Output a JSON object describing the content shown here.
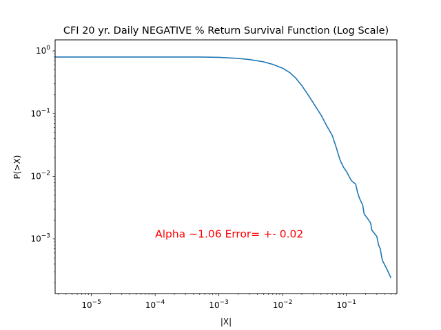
{
  "chart_data": {
    "type": "line",
    "title": "CFI 20 yr. Daily NEGATIVE % Return Survival Function (Log Scale)",
    "xlabel": "|X|",
    "ylabel": "P(>X)",
    "xscale": "log",
    "yscale": "log",
    "xlim": [
      2.7e-06,
      0.62
    ],
    "ylim": [
      0.000135,
      1.5
    ],
    "x_ticks": [
      {
        "base": "10",
        "exp": "−5",
        "value": 1e-05
      },
      {
        "base": "10",
        "exp": "−4",
        "value": 0.0001
      },
      {
        "base": "10",
        "exp": "−3",
        "value": 0.001
      },
      {
        "base": "10",
        "exp": "−2",
        "value": 0.01
      },
      {
        "base": "10",
        "exp": "−1",
        "value": 0.1
      }
    ],
    "y_ticks": [
      {
        "base": "10",
        "exp": "0",
        "value": 1
      },
      {
        "base": "10",
        "exp": "−1",
        "value": 0.1
      },
      {
        "base": "10",
        "exp": "−2",
        "value": 0.01
      },
      {
        "base": "10",
        "exp": "−3",
        "value": 0.001
      }
    ],
    "grid": false,
    "line_color": "#1f77b4",
    "annotation": {
      "text": "Alpha ~1.06  Error= +- 0.02",
      "color": "#ff0000",
      "x": 0.0001,
      "y": 0.00105
    },
    "series": [
      {
        "x": [
          2.7e-06,
          1e-05,
          0.0001,
          0.0005,
          0.001,
          0.002,
          0.003,
          0.005,
          0.007,
          0.01,
          0.013,
          0.016,
          0.02,
          0.025,
          0.03,
          0.04,
          0.05,
          0.06,
          0.07,
          0.075,
          0.08,
          0.09,
          0.1,
          0.11,
          0.12,
          0.14,
          0.15,
          0.16,
          0.18,
          0.19,
          0.21,
          0.24,
          0.25,
          0.28,
          0.3,
          0.32,
          0.34,
          0.36,
          0.37,
          0.42,
          0.5
        ],
        "y": [
          0.8,
          0.8,
          0.8,
          0.8,
          0.79,
          0.76,
          0.73,
          0.67,
          0.61,
          0.53,
          0.45,
          0.37,
          0.28,
          0.2,
          0.15,
          0.095,
          0.062,
          0.045,
          0.028,
          0.022,
          0.018,
          0.014,
          0.012,
          0.01,
          0.0085,
          0.0075,
          0.0055,
          0.0045,
          0.0035,
          0.0025,
          0.0022,
          0.0018,
          0.0014,
          0.0012,
          0.0011,
          0.0008,
          0.0007,
          0.0005,
          0.00045,
          0.00035,
          0.00024
        ]
      }
    ]
  }
}
